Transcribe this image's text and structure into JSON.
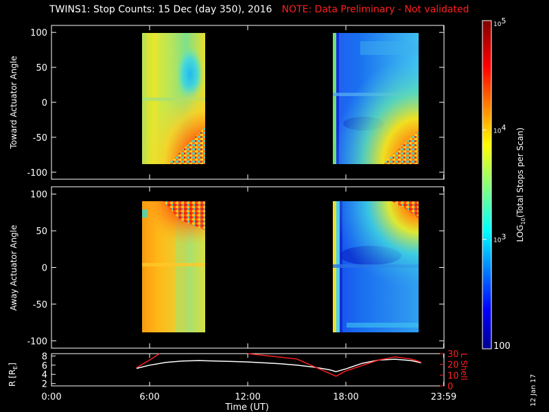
{
  "title": {
    "main": "TWINS1: Stop Counts: 15 Dec (day 350), 2016",
    "note": "NOTE: Data Preliminary - Not validated"
  },
  "stamp": "12 Jan 17",
  "colors": {
    "background": "#000000",
    "axes": "#ffffff",
    "note": "#ff2020",
    "lshell": "#ff2020",
    "r": "#ffffff"
  },
  "chart_data": [
    {
      "type": "heatmap",
      "panel": "toward",
      "ylabel": "Toward Actuator Angle",
      "ylim": [
        -110,
        110
      ],
      "yticks": [
        100,
        50,
        0,
        -50,
        -100
      ],
      "xlim": [
        0,
        24
      ],
      "data_blocks": [
        {
          "x_start_hours": 5.2,
          "x_end_hours": 9.1,
          "y_range": [
            -88,
            90
          ],
          "colormap_hint": "yellow-orange with cyan patch near 8-9h +50deg, red/noisy at bottom right"
        },
        {
          "x_start_hours": 17.2,
          "x_end_hours": 22.6,
          "y_range": [
            -88,
            90
          ],
          "colormap_hint": "blue-cyan, grading to yellow/red at bottom right"
        }
      ]
    },
    {
      "type": "heatmap",
      "panel": "away",
      "ylabel": "Away Actuator Angle",
      "ylim": [
        -110,
        110
      ],
      "yticks": [
        100,
        50,
        0,
        -50,
        -100
      ],
      "xlim": [
        0,
        24
      ],
      "data_blocks": [
        {
          "x_start_hours": 5.2,
          "x_end_hours": 9.1,
          "y_range": [
            -88,
            90
          ],
          "colormap_hint": "orange-yellow, noisy red at top right"
        },
        {
          "x_start_hours": 17.2,
          "x_end_hours": 22.6,
          "y_range": [
            -88,
            90
          ],
          "colormap_hint": "blue, grading to yellow/red at top right"
        }
      ]
    },
    {
      "type": "line",
      "panel": "orbit",
      "xlabel": "Time (UT)",
      "xticks": [
        "0:00",
        "6:00",
        "12:00",
        "18:00",
        "23:59"
      ],
      "xtick_hours": [
        0,
        6,
        12,
        18,
        23.98
      ],
      "left_axis": {
        "label": "R [R",
        "label_sub": "E",
        "label_end": "]",
        "ylim": [
          1.5,
          8.5
        ],
        "ticks": [
          2,
          4,
          6,
          8
        ]
      },
      "right_axis": {
        "label": "L Shell",
        "ylim": [
          0,
          30
        ],
        "ticks": [
          0,
          10,
          20,
          30
        ]
      },
      "series": [
        {
          "axis": "left",
          "x": [
            5.2,
            6,
            7,
            8,
            9,
            10,
            11,
            12,
            13,
            14,
            15,
            16,
            17,
            17.4,
            18,
            19,
            20,
            21,
            22,
            22.6
          ],
          "y": [
            5.3,
            6.0,
            6.6,
            6.9,
            7.0,
            6.9,
            6.8,
            6.7,
            6.5,
            6.3,
            6.0,
            5.6,
            5.0,
            4.6,
            5.2,
            6.4,
            7.1,
            7.3,
            7.0,
            6.5
          ]
        },
        {
          "axis": "right",
          "x": [
            5.2,
            6,
            6.6
          ],
          "y": [
            17,
            24,
            32
          ]
        },
        {
          "axis": "right",
          "x": [
            12,
            15,
            17.4,
            18,
            20,
            21,
            22,
            22.6
          ],
          "y": [
            31,
            25,
            9,
            14,
            24,
            27,
            25,
            22
          ]
        }
      ]
    }
  ],
  "colorbar": {
    "label": "LOG",
    "label_sub": "10",
    "label_end": "(Total Stops per Scan)",
    "min": 100,
    "max": 100000,
    "ticks": [
      {
        "value": 100,
        "text": "100"
      },
      {
        "value": 1000,
        "text": "10",
        "sup": "3"
      },
      {
        "value": 10000,
        "text": "10",
        "sup": "4"
      },
      {
        "value": 100000,
        "text": "10",
        "sup": "5"
      }
    ]
  }
}
